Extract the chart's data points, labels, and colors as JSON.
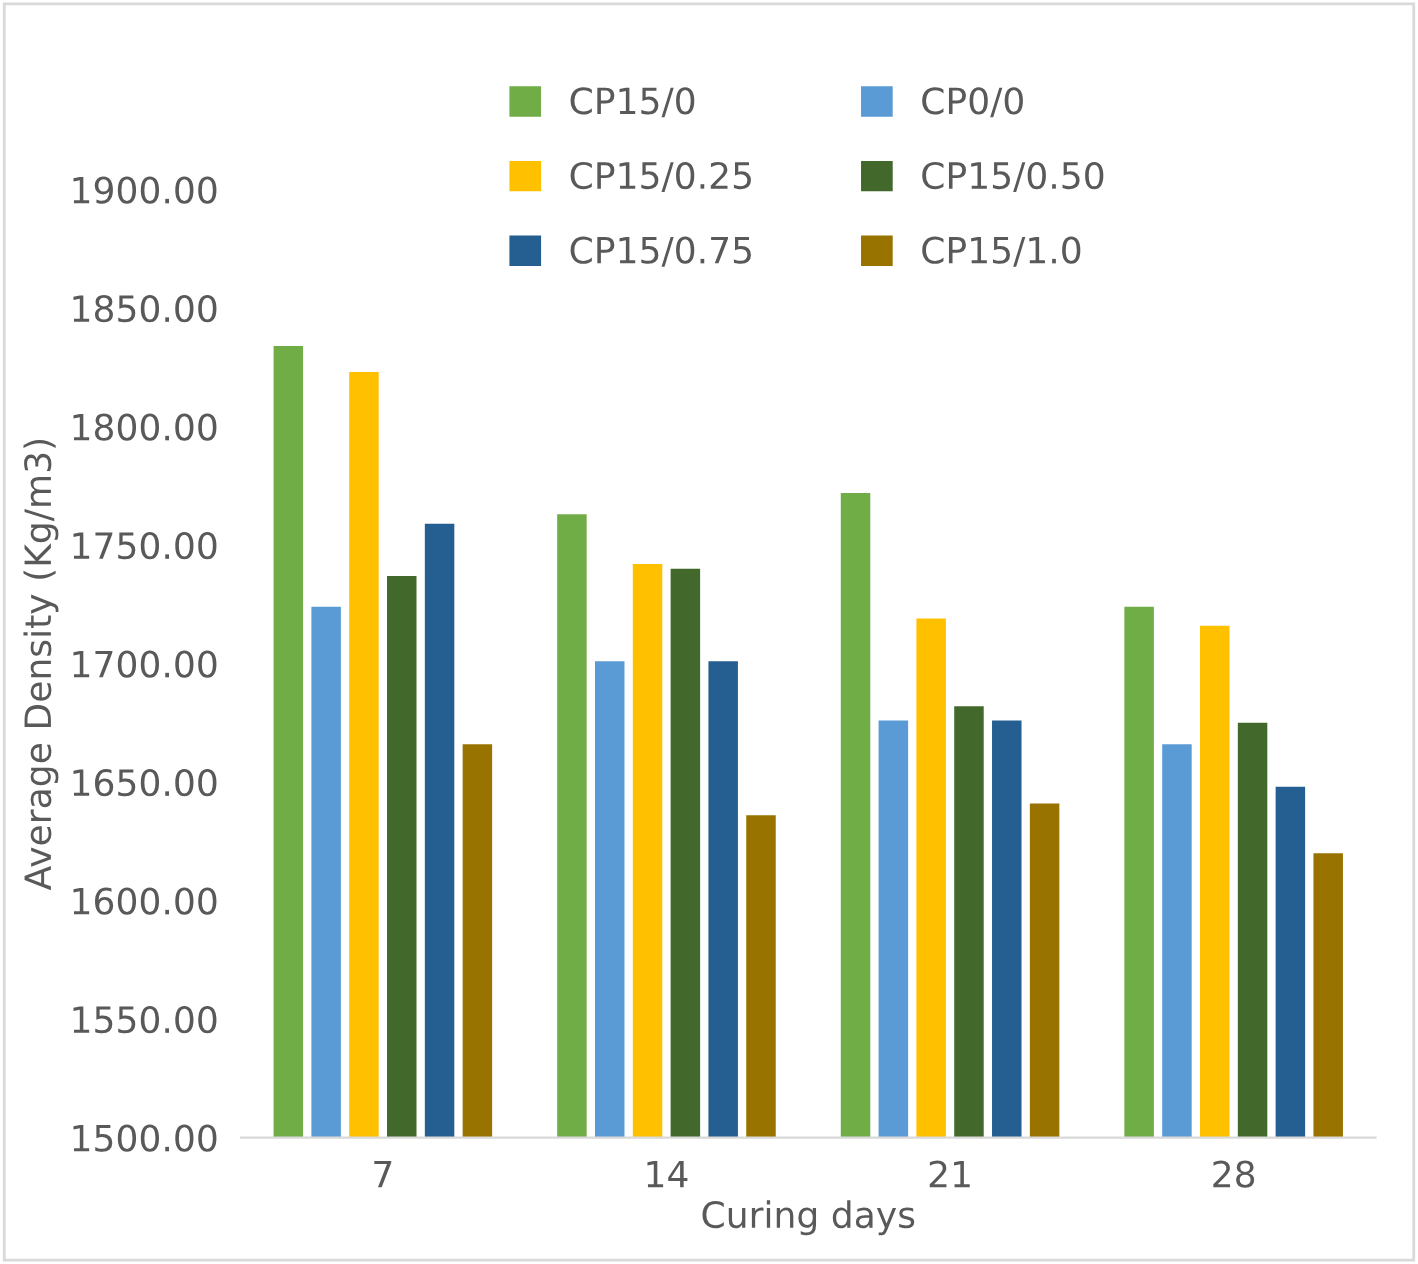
{
  "chart_data": {
    "type": "bar",
    "xlabel": "Curing days",
    "ylabel": "Average Density (Kg/m3)",
    "categories": [
      "7",
      "14",
      "21",
      "28"
    ],
    "ylim": [
      1500,
      1900
    ],
    "yticks": [
      {
        "value": 1500,
        "label": "1500.00"
      },
      {
        "value": 1550,
        "label": "1550.00"
      },
      {
        "value": 1600,
        "label": "1600.00"
      },
      {
        "value": 1650,
        "label": "1650.00"
      },
      {
        "value": 1700,
        "label": "1700.00"
      },
      {
        "value": 1750,
        "label": "1750.00"
      },
      {
        "value": 1800,
        "label": "1800.00"
      },
      {
        "value": 1850,
        "label": "1850.00"
      },
      {
        "value": 1900,
        "label": "1900.00"
      }
    ],
    "grid": false,
    "legend": "top",
    "series": [
      {
        "name": "CP15/0",
        "color": "#70ad47",
        "values": [
          1834,
          1763,
          1772,
          1724
        ]
      },
      {
        "name": "CP0/0",
        "color": "#5b9bd5",
        "values": [
          1724,
          1701,
          1676,
          1666
        ]
      },
      {
        "name": "CP15/0.25",
        "color": "#ffc000",
        "values": [
          1823,
          1742,
          1719,
          1716
        ]
      },
      {
        "name": "CP15/0.50",
        "color": "#43682b",
        "values": [
          1737,
          1740,
          1682,
          1675
        ]
      },
      {
        "name": "CP15/0.75",
        "color": "#255e91",
        "values": [
          1759,
          1701,
          1676,
          1648
        ]
      },
      {
        "name": "CP15/1.0",
        "color": "#997300",
        "values": [
          1666,
          1636,
          1641,
          1620
        ]
      }
    ]
  }
}
